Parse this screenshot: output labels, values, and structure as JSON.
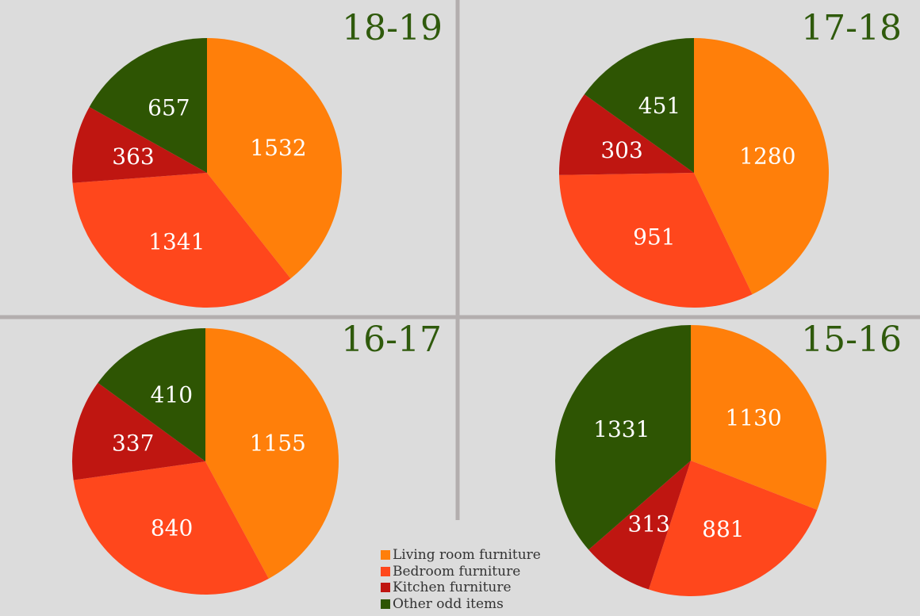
{
  "legend": {
    "items": [
      {
        "label": "Living room furniture",
        "color": "#ff7f0a"
      },
      {
        "label": "Bedroom furniture",
        "color": "#ff471c"
      },
      {
        "label": "Kitchen furniture",
        "color": "#bf1611"
      },
      {
        "label": "Other odd items",
        "color": "#2e5503"
      }
    ]
  },
  "chart_data": [
    {
      "type": "pie",
      "title": "18-19",
      "categories": [
        "Living room furniture",
        "Bedroom furniture",
        "Kitchen furniture",
        "Other odd items"
      ],
      "values": [
        1532,
        1341,
        363,
        657
      ]
    },
    {
      "type": "pie",
      "title": "17-18",
      "categories": [
        "Living room furniture",
        "Bedroom furniture",
        "Kitchen furniture",
        "Other odd items"
      ],
      "values": [
        1280,
        951,
        303,
        451
      ]
    },
    {
      "type": "pie",
      "title": "16-17",
      "categories": [
        "Living room furniture",
        "Bedroom furniture",
        "Kitchen furniture",
        "Other odd items"
      ],
      "values": [
        1155,
        840,
        337,
        410
      ]
    },
    {
      "type": "pie",
      "title": "15-16",
      "categories": [
        "Living room furniture",
        "Bedroom furniture",
        "Kitchen furniture",
        "Other odd items"
      ],
      "values": [
        1130,
        881,
        313,
        1331
      ]
    }
  ]
}
